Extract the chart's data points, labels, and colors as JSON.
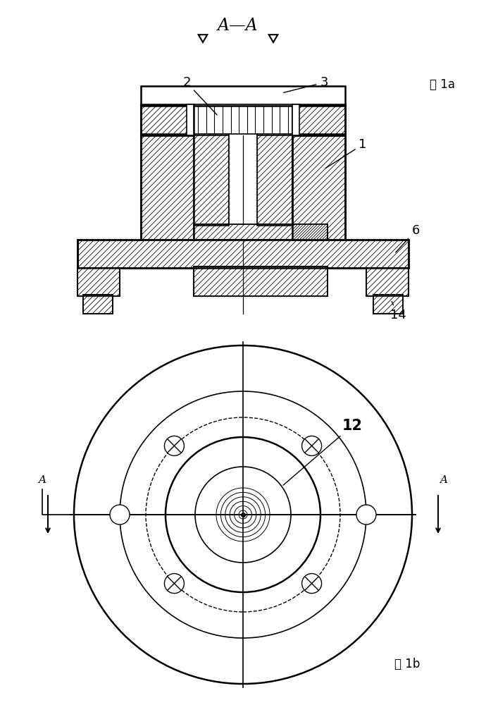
{
  "fig_width": 6.9,
  "fig_height": 10.0,
  "dpi": 100,
  "bg_color": "#ffffff",
  "line_color": "#000000",
  "top_label": "A—A",
  "fig1a_label": "图 1a",
  "fig1b_label": "图 1b"
}
